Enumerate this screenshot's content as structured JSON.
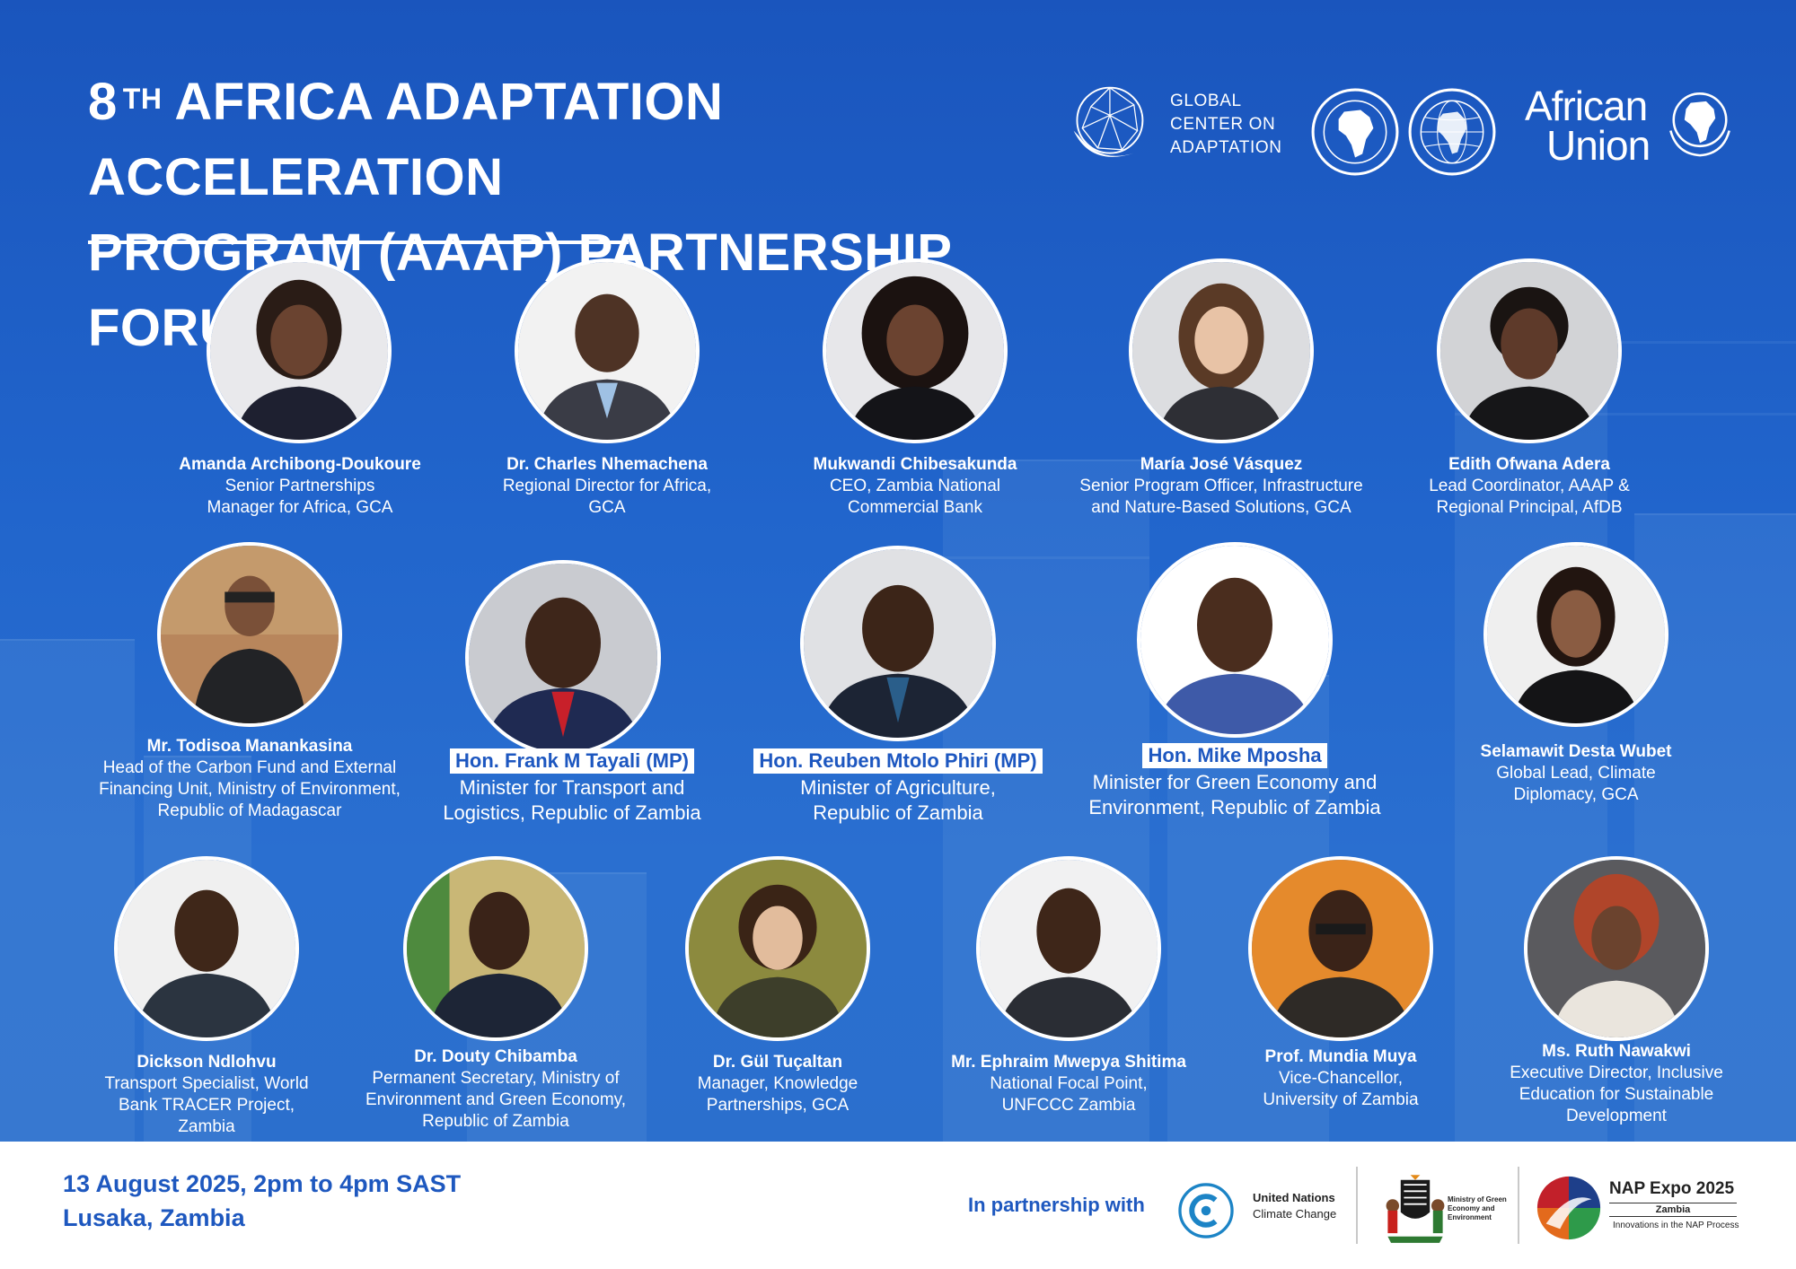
{
  "header": {
    "title_prefix": "8",
    "title_sup": "TH",
    "title_line1_rest": "AFRICA ADAPTATION ACCELERATION",
    "title_line2": "PROGRAM (AAAP) PARTNERSHIP FORUM",
    "gca_text": [
      "GLOBAL",
      "CENTER ON",
      "ADAPTATION"
    ],
    "au_text": [
      "African",
      "Union"
    ]
  },
  "colors": {
    "primary_blue": "#1f5fc4",
    "accent_text_blue": "#1e58bf",
    "white": "#ffffff"
  },
  "speakers": [
    {
      "name": "Amanda Archibong-Doukoure",
      "role": "Senior Partnerships\nManager for Africa, GCA"
    },
    {
      "name": "Dr. Charles Nhemachena",
      "role": "Regional Director for Africa,\nGCA"
    },
    {
      "name": "Mukwandi Chibesakunda",
      "role": "CEO, Zambia National\nCommercial Bank"
    },
    {
      "name": "María José Vásquez",
      "role": "Senior Program Officer, Infrastructure\nand Nature-Based Solutions, GCA"
    },
    {
      "name": "Edith Ofwana Adera",
      "role": "Lead Coordinator,  AAAP &\nRegional Principal, AfDB"
    },
    {
      "name": "Mr. Todisoa Manankasina",
      "role": "Head of the Carbon Fund and External\nFinancing Unit, Ministry of Environment,\nRepublic of Madagascar"
    },
    {
      "name": "Hon. Frank M Tayali (MP)",
      "role": "Minister for Transport and\nLogistics, Republic of Zambia"
    },
    {
      "name": "Hon. Reuben Mtolo Phiri (MP)",
      "role": "Minister of Agriculture,\nRepublic of Zambia"
    },
    {
      "name": "Hon. Mike Mposha",
      "role": "Minister for Green Economy and\nEnvironment, Republic of Zambia"
    },
    {
      "name": "Selamawit Desta Wubet",
      "role": "Global Lead, Climate\nDiplomacy, GCA"
    },
    {
      "name": "Dickson Ndlohvu",
      "role": "Transport Specialist, World\nBank TRACER Project,\nZambia"
    },
    {
      "name": "Dr. Douty Chibamba",
      "role": "Permanent Secretary, Ministry of\nEnvironment and Green Economy,\nRepublic of Zambia"
    },
    {
      "name": "Dr. Gül Tuçaltan",
      "role": "Manager, Knowledge\nPartnerships, GCA"
    },
    {
      "name": "Mr. Ephraim Mwepya Shitima",
      "role": "National Focal Point,\nUNFCCC Zambia"
    },
    {
      "name": "Prof. Mundia Muya",
      "role": "Vice-Chancellor,\nUniversity of Zambia"
    },
    {
      "name": "Ms. Ruth Nawakwi",
      "role": "Executive Director, Inclusive\nEducation for Sustainable\nDevelopment"
    }
  ],
  "footer": {
    "date_line": "13 August 2025, 2pm to 4pm SAST",
    "location_line": "Lusaka, Zambia",
    "partnership_label": "In partnership with",
    "unfccc_line1": "United Nations",
    "unfccc_line2": "Climate Change",
    "zambia_ministry": [
      "Ministry of Green",
      "Economy and",
      "Environment"
    ],
    "nap_title": "NAP Expo 2025",
    "nap_country": "Zambia",
    "nap_tagline": "Innovations in the NAP Process"
  }
}
